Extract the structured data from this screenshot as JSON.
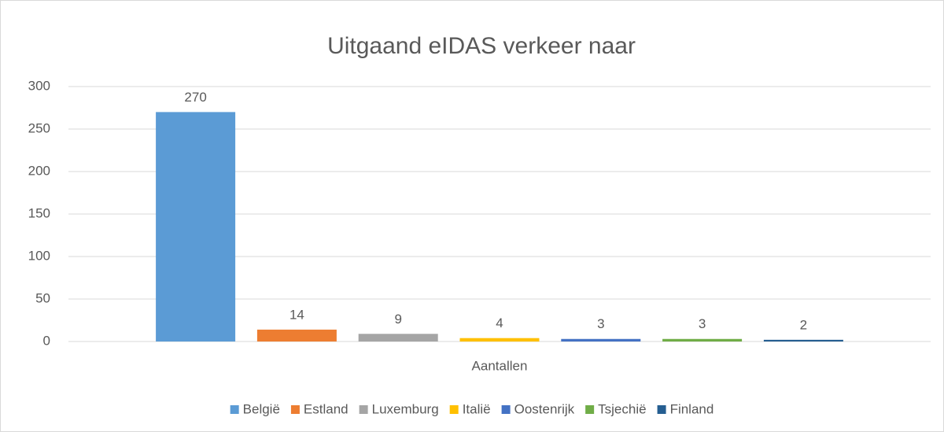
{
  "chart_data": {
    "type": "bar",
    "title": "Uitgaand eIDAS verkeer naar",
    "categories": [
      "Aantallen"
    ],
    "series": [
      {
        "name": "België",
        "color": "#5b9bd5",
        "values": [
          270
        ]
      },
      {
        "name": "Estland",
        "color": "#ed7d31",
        "values": [
          14
        ]
      },
      {
        "name": "Luxemburg",
        "color": "#a5a5a5",
        "values": [
          9
        ]
      },
      {
        "name": "Italië",
        "color": "#ffc000",
        "values": [
          4
        ]
      },
      {
        "name": "Oostenrijk",
        "color": "#4472c4",
        "values": [
          3
        ]
      },
      {
        "name": "Tsjechië",
        "color": "#70ad47",
        "values": [
          3
        ]
      },
      {
        "name": "Finland",
        "color": "#255e91",
        "values": [
          2
        ]
      }
    ],
    "ylim": [
      0,
      300
    ],
    "yticks": [
      0,
      50,
      100,
      150,
      200,
      250,
      300
    ],
    "grid": true,
    "legend": "bottom"
  }
}
